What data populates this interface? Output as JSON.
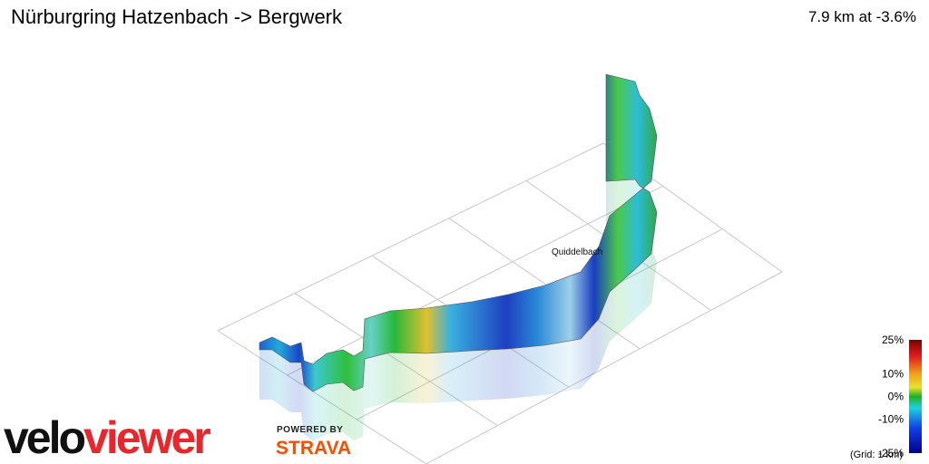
{
  "header": {
    "title": "Nürburgring Hatzenbach -> Bergwerk",
    "stats": "7.9 km at -3.6%"
  },
  "map": {
    "place_label": "Quiddelbach"
  },
  "legend": {
    "ticks": [
      {
        "value": 25,
        "label": "25%"
      },
      {
        "value": 10,
        "label": "10%"
      },
      {
        "value": 0,
        "label": "0%"
      },
      {
        "value": -10,
        "label": "-10%"
      },
      {
        "value": -25,
        "label": "-25%"
      }
    ],
    "grid_note": "(Grid: 1 km)"
  },
  "branding": {
    "logo_part1": "velo",
    "logo_part2": "viewer",
    "powered_by": "POWERED BY",
    "strava": "STRAVA"
  }
}
